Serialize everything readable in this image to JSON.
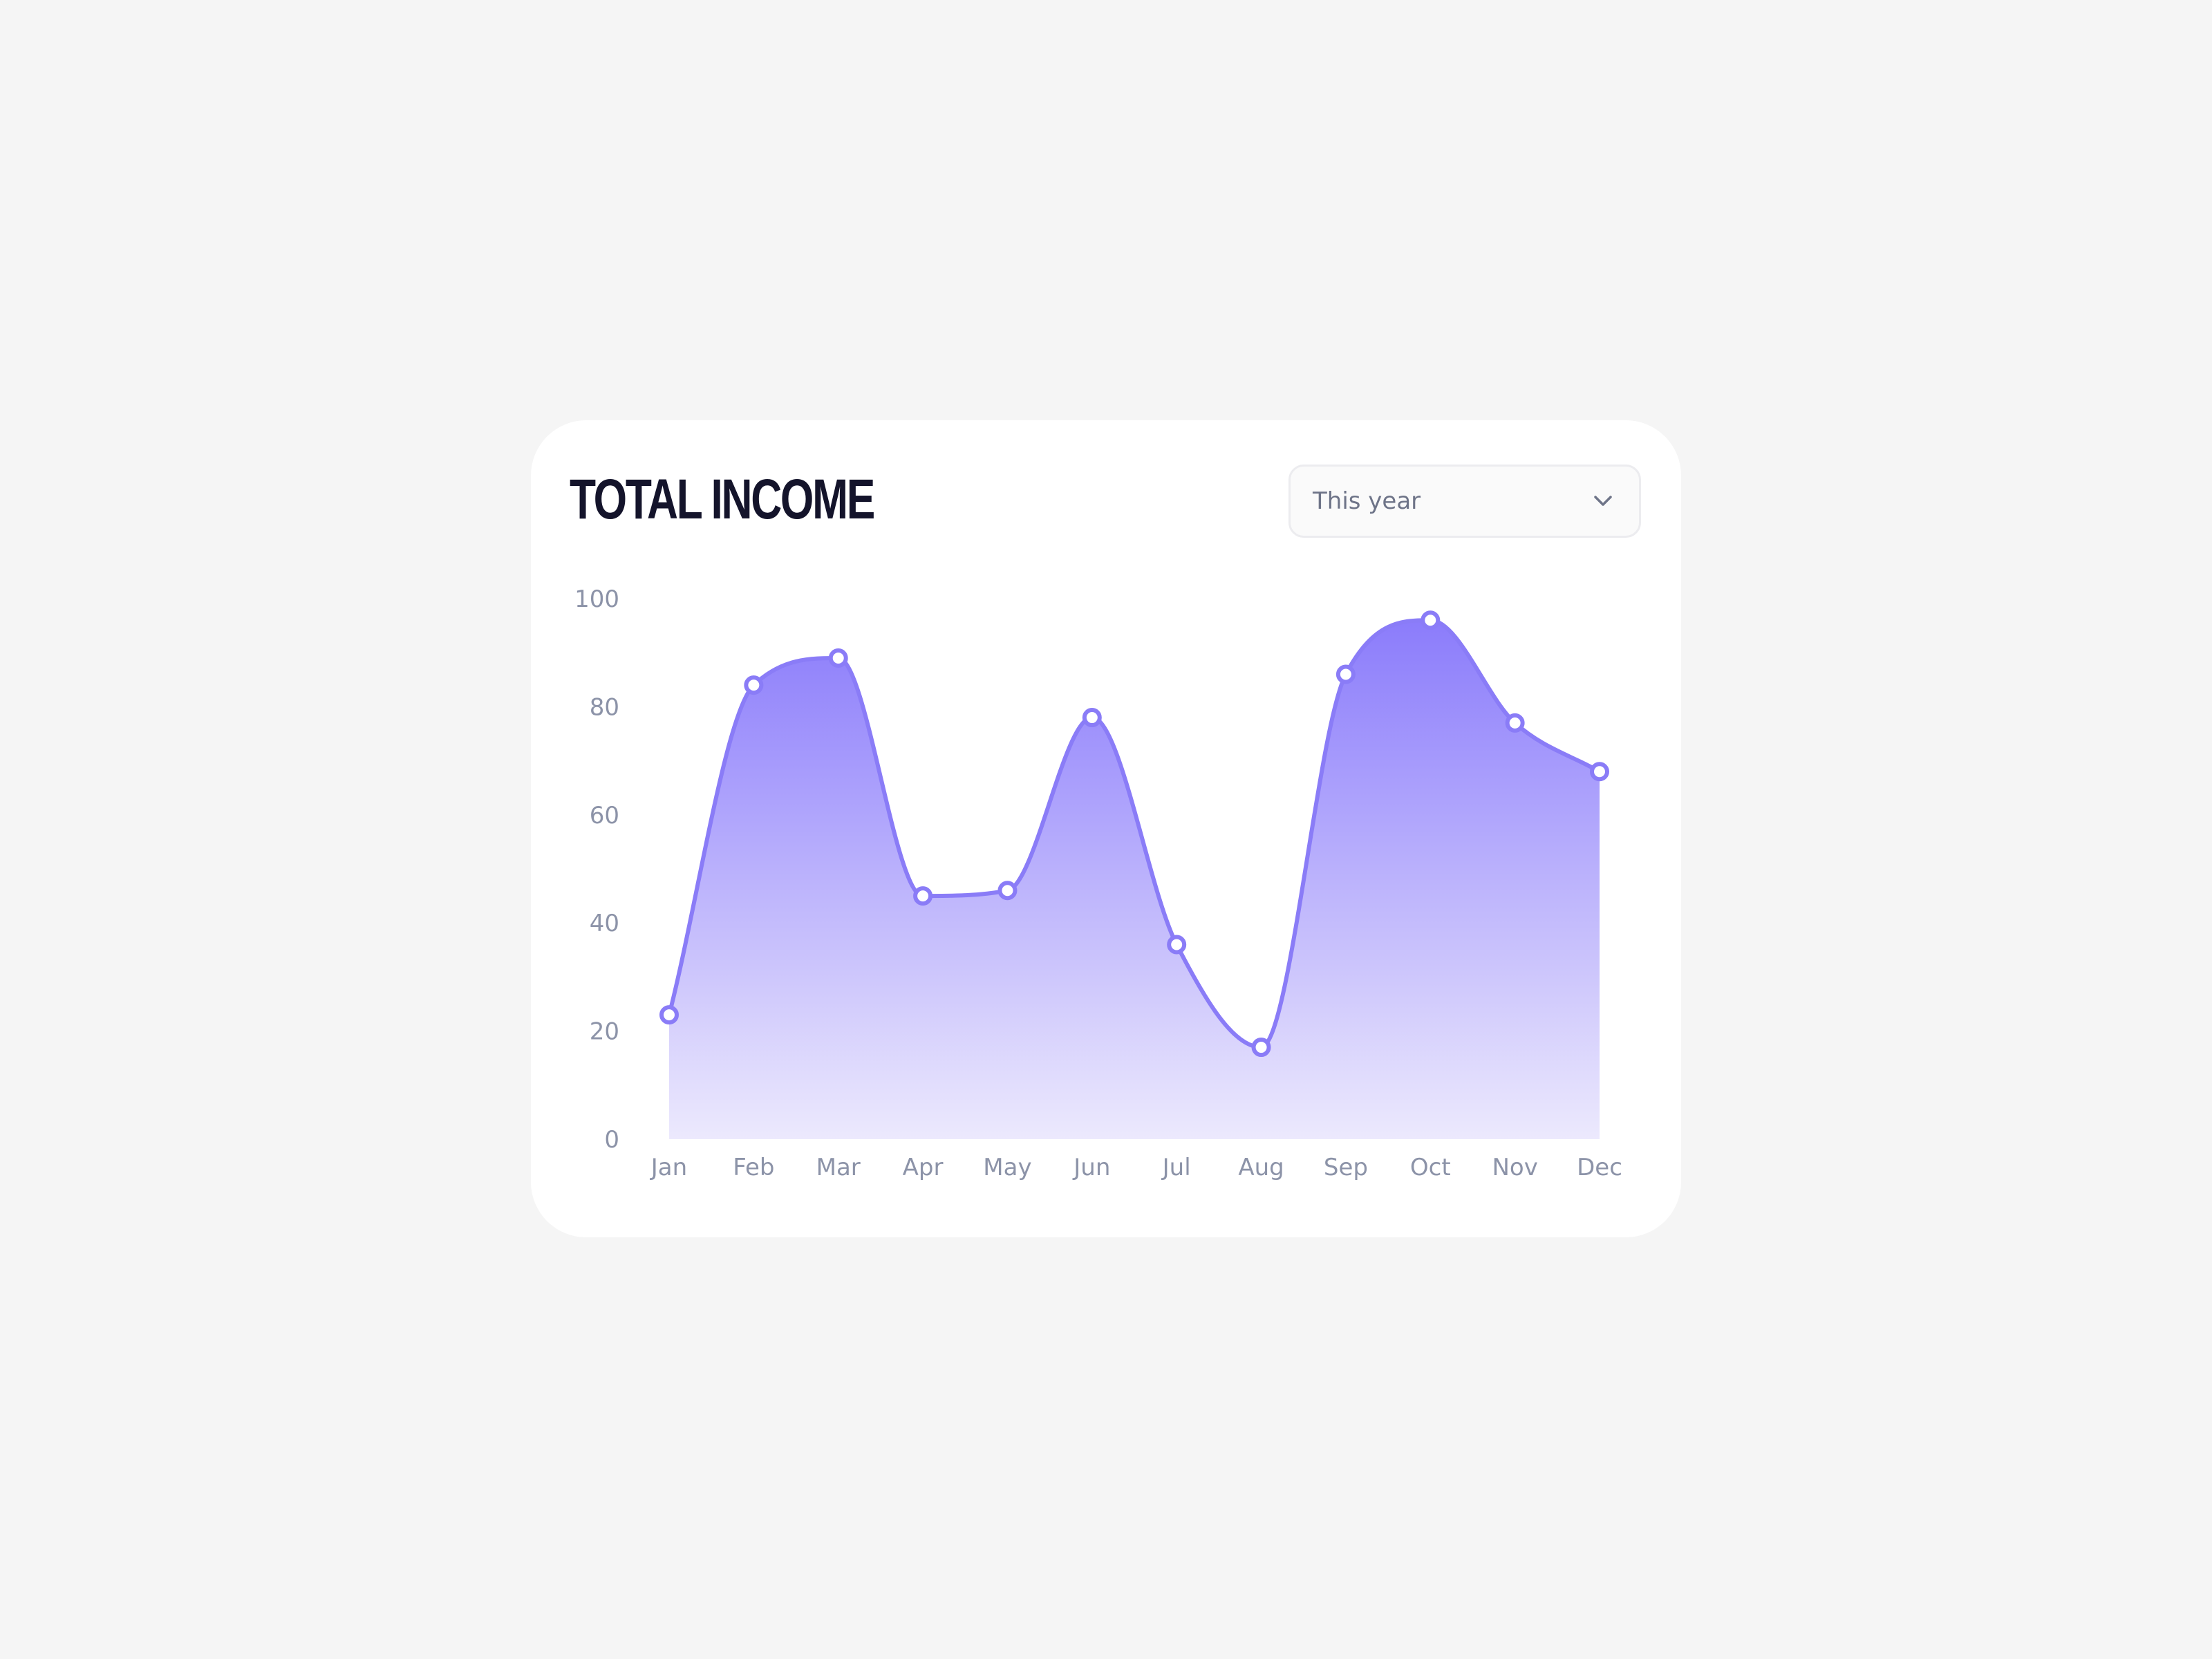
{
  "card": {
    "title": "TOTAL INCOME",
    "period_select": {
      "value": "This year",
      "icon": "chevron-down-icon"
    }
  },
  "chart_data": {
    "type": "area",
    "title": "TOTAL INCOME",
    "categories": [
      "Jan",
      "Feb",
      "Mar",
      "Apr",
      "May",
      "Jun",
      "Jul",
      "Aug",
      "Sep",
      "Oct",
      "Nov",
      "Dec"
    ],
    "values": [
      23,
      84,
      89,
      45,
      46,
      78,
      36,
      17,
      86,
      96,
      77,
      68
    ],
    "ylim": [
      0,
      100
    ],
    "yticks": [
      0,
      20,
      40,
      60,
      80,
      100
    ],
    "grid": false,
    "smooth": true,
    "markers": "hollow-circle"
  },
  "colors": {
    "background": "#f5f5f5",
    "card": "#ffffff",
    "title": "#14142b",
    "line": "#8a7cf7",
    "area_top": "#8b7cfb",
    "area_bottom": "#ece9fd",
    "tick_label": "#8c93a8",
    "dropdown_text": "#6e7488"
  }
}
